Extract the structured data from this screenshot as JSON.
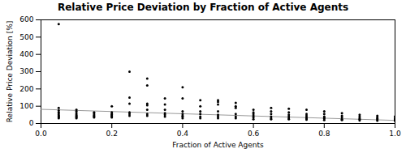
{
  "chart_data": {
    "type": "scatter",
    "title": "Relative Price Deviation by Fraction of Active Agents",
    "xlabel": "Fraction of Active Agents",
    "ylabel": "Relative Price Deviation [%]",
    "series": [
      {
        "type": "scatter",
        "color": "#000000",
        "x": [
          0.05,
          0.05,
          0.05,
          0.05,
          0.05,
          0.05,
          0.05,
          0.05,
          0.05,
          0.05,
          0.1,
          0.1,
          0.1,
          0.1,
          0.1,
          0.1,
          0.1,
          0.1,
          0.15,
          0.15,
          0.15,
          0.15,
          0.15,
          0.15,
          0.2,
          0.2,
          0.2,
          0.2,
          0.2,
          0.2,
          0.2,
          0.25,
          0.25,
          0.25,
          0.25,
          0.25,
          0.25,
          0.3,
          0.3,
          0.3,
          0.3,
          0.3,
          0.3,
          0.3,
          0.35,
          0.35,
          0.35,
          0.35,
          0.35,
          0.35,
          0.4,
          0.4,
          0.4,
          0.4,
          0.4,
          0.4,
          0.4,
          0.45,
          0.45,
          0.45,
          0.45,
          0.45,
          0.45,
          0.5,
          0.5,
          0.5,
          0.5,
          0.5,
          0.5,
          0.5,
          0.55,
          0.55,
          0.55,
          0.55,
          0.55,
          0.55,
          0.6,
          0.6,
          0.6,
          0.6,
          0.6,
          0.6,
          0.65,
          0.65,
          0.65,
          0.65,
          0.65,
          0.65,
          0.7,
          0.7,
          0.7,
          0.7,
          0.7,
          0.7,
          0.75,
          0.75,
          0.75,
          0.75,
          0.75,
          0.75,
          0.8,
          0.8,
          0.8,
          0.8,
          0.8,
          0.8,
          0.85,
          0.85,
          0.85,
          0.85,
          0.85,
          0.9,
          0.9,
          0.9,
          0.9,
          0.9,
          0.95,
          0.95,
          0.95,
          0.95,
          0.95,
          1.0,
          1.0,
          1.0,
          1.0,
          1.0
        ],
        "values": [
          575,
          90,
          75,
          65,
          60,
          50,
          45,
          40,
          35,
          30,
          80,
          70,
          60,
          50,
          45,
          40,
          35,
          30,
          65,
          60,
          50,
          45,
          40,
          35,
          100,
          65,
          55,
          50,
          45,
          40,
          35,
          300,
          150,
          115,
          65,
          55,
          45,
          260,
          220,
          115,
          105,
          80,
          55,
          45,
          145,
          110,
          80,
          60,
          50,
          40,
          210,
          145,
          70,
          55,
          45,
          40,
          30,
          135,
          100,
          70,
          55,
          40,
          30,
          135,
          125,
          110,
          70,
          50,
          40,
          30,
          120,
          100,
          90,
          55,
          40,
          30,
          80,
          65,
          55,
          45,
          35,
          25,
          90,
          70,
          55,
          40,
          30,
          25,
          85,
          65,
          50,
          40,
          30,
          25,
          80,
          55,
          45,
          35,
          28,
          22,
          70,
          55,
          40,
          35,
          28,
          20,
          60,
          45,
          35,
          25,
          20,
          50,
          40,
          30,
          25,
          18,
          45,
          35,
          28,
          22,
          16,
          40,
          30,
          25,
          18,
          15
        ]
      },
      {
        "type": "line",
        "color": "#999999",
        "x": [
          0.0,
          1.0
        ],
        "values": [
          82,
          18
        ]
      }
    ],
    "xlim": [
      0.0,
      1.0
    ],
    "xticks": [
      {
        "value": 0.0,
        "label": "0.0"
      },
      0.2,
      0.4,
      0.6,
      0.8,
      {
        "value": 1.0,
        "label": "1.0"
      }
    ],
    "ylim": [
      0,
      600
    ],
    "yticks": [
      0,
      100,
      200,
      300,
      400,
      500,
      600
    ],
    "grid": false
  }
}
